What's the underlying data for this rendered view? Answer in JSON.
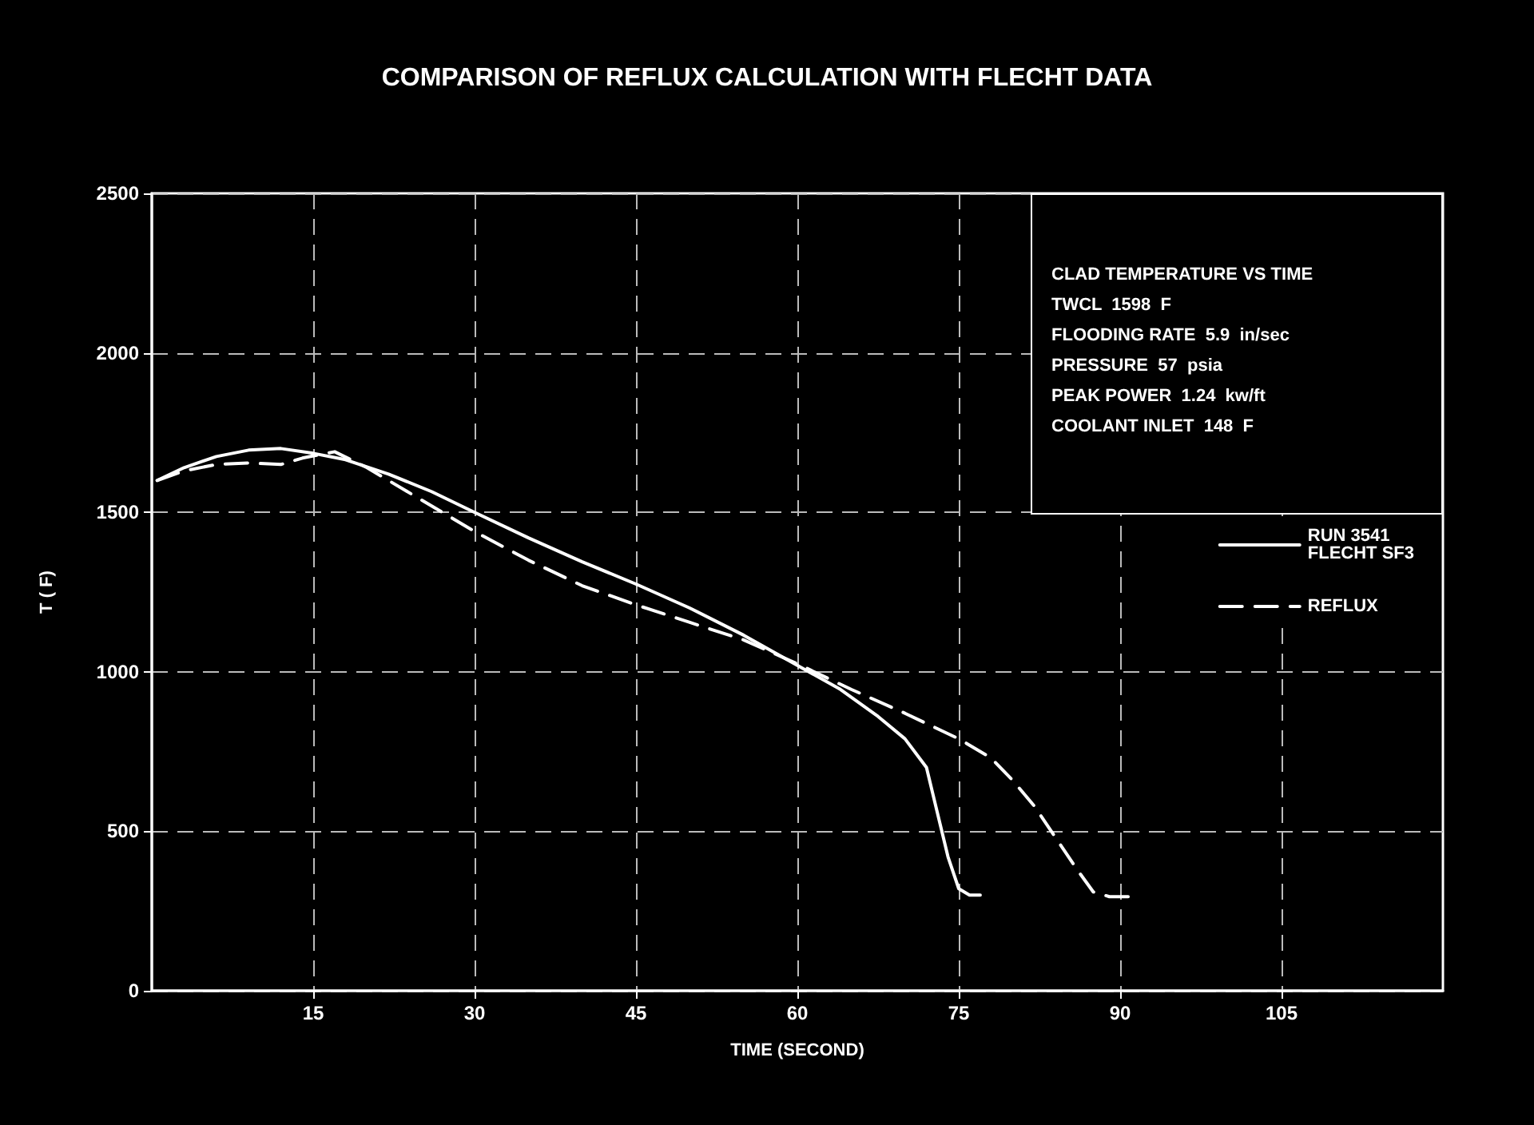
{
  "chart_data": {
    "type": "line",
    "title": "COMPARISON OF REFLUX CALCULATION WITH FLECHT DATA",
    "xlabel": "TIME (SECOND)",
    "ylabel": "T ( F)",
    "xlim": [
      0,
      120
    ],
    "xticks": [
      15,
      30,
      45,
      60,
      75,
      90,
      105
    ],
    "ylim": [
      0,
      2500
    ],
    "yticks": [
      0,
      500,
      1000,
      1500,
      2000,
      2500
    ],
    "grid": true,
    "legend": "right",
    "marker": "none",
    "annotations": [
      "CLAD TEMPERATURE VS TIME",
      "TWCL  1598  F",
      "FLOODING RATE  5.9  in/sec",
      "PRESSURE  57  psia",
      "PEAK POWER  1.24  kw/ft",
      "COOLANT INLET  148  F"
    ],
    "series": [
      {
        "name": "RUN 3541\nFLECHT SF3",
        "color": "#ffffff",
        "line_style": "solid",
        "x": [
          0.5,
          3,
          6,
          9,
          12,
          15,
          18,
          22,
          26,
          30,
          35,
          40,
          45,
          50,
          55,
          60,
          64,
          67.5,
          70,
          72,
          73,
          74,
          75,
          76,
          77
        ],
        "values": [
          1600,
          1640,
          1675,
          1695,
          1700,
          1685,
          1665,
          1620,
          1565,
          1500,
          1420,
          1345,
          1275,
          1200,
          1115,
          1020,
          945,
          860,
          790,
          700,
          560,
          420,
          320,
          300,
          300
        ]
      },
      {
        "name": "REFLUX",
        "color": "#ffffff",
        "line_style": "dashed",
        "x": [
          0.5,
          3,
          6,
          9,
          12,
          14,
          17,
          20,
          25,
          30,
          35,
          40,
          45,
          50,
          55,
          60,
          65,
          70,
          75,
          78,
          80,
          82,
          84,
          86,
          87.5,
          89,
          91
        ],
        "values": [
          1600,
          1630,
          1650,
          1655,
          1650,
          1670,
          1690,
          1640,
          1540,
          1440,
          1350,
          1270,
          1210,
          1155,
          1100,
          1025,
          945,
          870,
          790,
          730,
          660,
          580,
          480,
          380,
          310,
          295,
          295
        ]
      }
    ]
  }
}
